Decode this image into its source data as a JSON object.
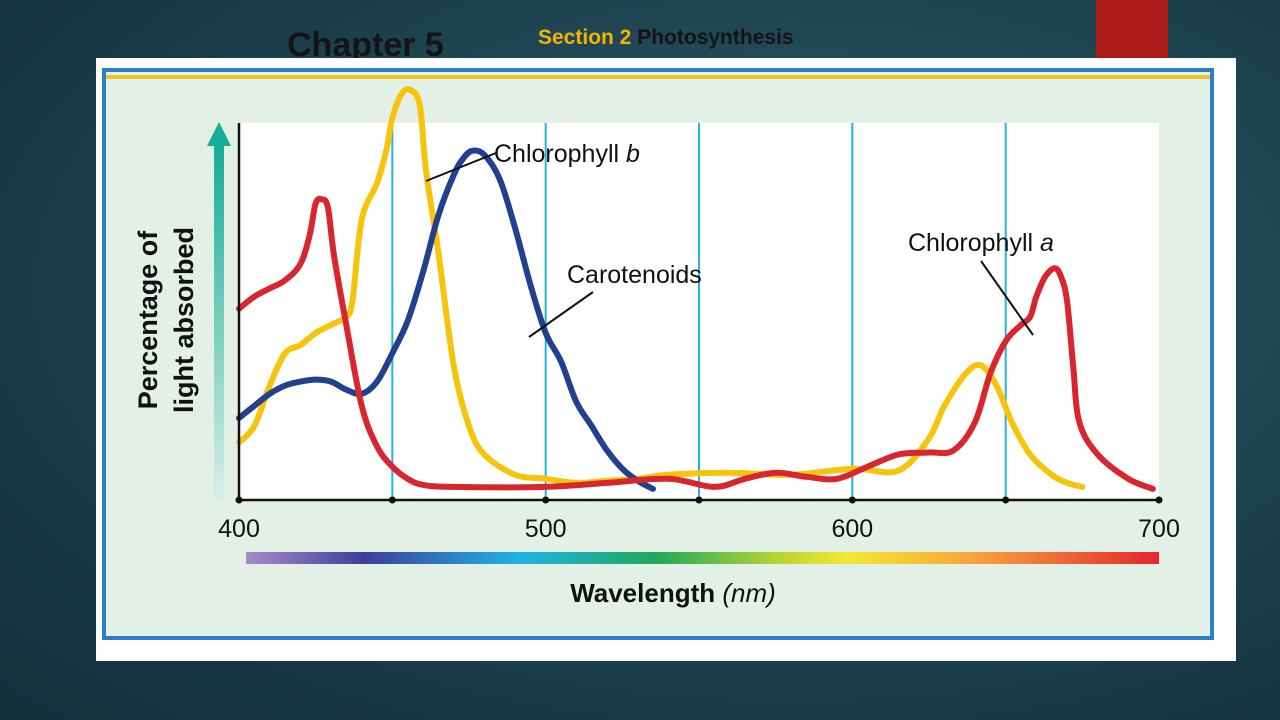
{
  "slide": {
    "title": "Chapter 5",
    "section_label": "Section 2",
    "section_topic": "Photosynthesis"
  },
  "chart_data": {
    "type": "line",
    "xlabel": "Wavelength",
    "xlabel_unit": "(nm)",
    "ylabel_line1": "Percentage of",
    "ylabel_line2": "light absorbed",
    "xlim": [
      400,
      700
    ],
    "ylim": [
      0,
      100
    ],
    "x_ticks": [
      400,
      500,
      600,
      700
    ],
    "x_tick_labels": [
      "400",
      "500",
      "600",
      "700"
    ],
    "gridlines_x": [
      450,
      500,
      550,
      600,
      650
    ],
    "minor_tick_dots": [
      400,
      450,
      500,
      550,
      600,
      650,
      700
    ],
    "spectrum_bar": true,
    "series": [
      {
        "key": "chlorophyll_b",
        "label_main": "Chlorophyll",
        "label_italic": "b",
        "color": "#f6c40a",
        "points": [
          [
            400,
            13
          ],
          [
            405,
            17
          ],
          [
            410,
            27
          ],
          [
            415,
            35
          ],
          [
            420,
            37
          ],
          [
            425,
            40
          ],
          [
            430,
            42
          ],
          [
            435,
            44
          ],
          [
            437,
            48
          ],
          [
            440,
            68
          ],
          [
            445,
            77
          ],
          [
            448,
            85
          ],
          [
            450,
            93
          ],
          [
            453,
            99
          ],
          [
            456,
            100
          ],
          [
            459,
            96
          ],
          [
            461,
            80
          ],
          [
            465,
            60
          ],
          [
            470,
            32
          ],
          [
            475,
            17
          ],
          [
            480,
            10
          ],
          [
            490,
            5
          ],
          [
            500,
            4
          ],
          [
            510,
            3
          ],
          [
            520,
            3.5
          ],
          [
            530,
            4
          ],
          [
            540,
            5
          ],
          [
            560,
            5.5
          ],
          [
            580,
            5
          ],
          [
            600,
            6.5
          ],
          [
            615,
            6
          ],
          [
            625,
            14
          ],
          [
            630,
            22
          ],
          [
            637,
            30
          ],
          [
            642,
            32
          ],
          [
            647,
            27
          ],
          [
            652,
            18
          ],
          [
            658,
            10
          ],
          [
            665,
            5
          ],
          [
            670,
            3
          ],
          [
            675,
            2
          ]
        ]
      },
      {
        "key": "carotenoids",
        "label_main": "Carotenoids",
        "label_italic": "",
        "color": "#23408e",
        "points": [
          [
            400,
            19
          ],
          [
            405,
            22
          ],
          [
            410,
            25
          ],
          [
            415,
            27
          ],
          [
            420,
            28
          ],
          [
            425,
            28.5
          ],
          [
            430,
            28
          ],
          [
            435,
            26
          ],
          [
            440,
            25
          ],
          [
            445,
            28
          ],
          [
            450,
            35
          ],
          [
            455,
            43
          ],
          [
            460,
            55
          ],
          [
            465,
            69
          ],
          [
            470,
            79
          ],
          [
            473,
            83
          ],
          [
            476,
            85
          ],
          [
            480,
            84
          ],
          [
            485,
            78
          ],
          [
            490,
            66
          ],
          [
            495,
            52
          ],
          [
            500,
            40
          ],
          [
            505,
            33
          ],
          [
            510,
            23
          ],
          [
            515,
            17
          ],
          [
            520,
            11
          ],
          [
            525,
            6.5
          ],
          [
            530,
            3.5
          ],
          [
            535,
            1.5
          ]
        ]
      },
      {
        "key": "chlorophyll_a",
        "label_main": "Chlorophyll",
        "label_italic": "a",
        "color": "#d8262e",
        "points": [
          [
            400,
            46
          ],
          [
            405,
            49
          ],
          [
            410,
            51
          ],
          [
            415,
            53
          ],
          [
            420,
            57
          ],
          [
            423,
            64
          ],
          [
            425,
            72
          ],
          [
            427,
            73
          ],
          [
            429,
            71
          ],
          [
            431,
            59
          ],
          [
            435,
            42
          ],
          [
            440,
            22
          ],
          [
            445,
            12
          ],
          [
            450,
            7
          ],
          [
            455,
            4
          ],
          [
            460,
            2.5
          ],
          [
            470,
            2
          ],
          [
            500,
            2
          ],
          [
            520,
            3
          ],
          [
            540,
            4
          ],
          [
            555,
            2
          ],
          [
            565,
            4
          ],
          [
            575,
            5.5
          ],
          [
            585,
            4.5
          ],
          [
            595,
            4
          ],
          [
            605,
            7
          ],
          [
            615,
            10
          ],
          [
            625,
            10.5
          ],
          [
            633,
            11
          ],
          [
            640,
            18
          ],
          [
            645,
            30
          ],
          [
            650,
            38
          ],
          [
            655,
            42
          ],
          [
            658,
            44
          ],
          [
            660,
            49
          ],
          [
            663,
            54
          ],
          [
            666,
            56
          ],
          [
            668,
            54
          ],
          [
            670,
            48
          ],
          [
            672,
            32
          ],
          [
            674,
            18
          ],
          [
            680,
            10
          ],
          [
            690,
            4
          ],
          [
            698,
            1.5
          ]
        ]
      }
    ]
  }
}
